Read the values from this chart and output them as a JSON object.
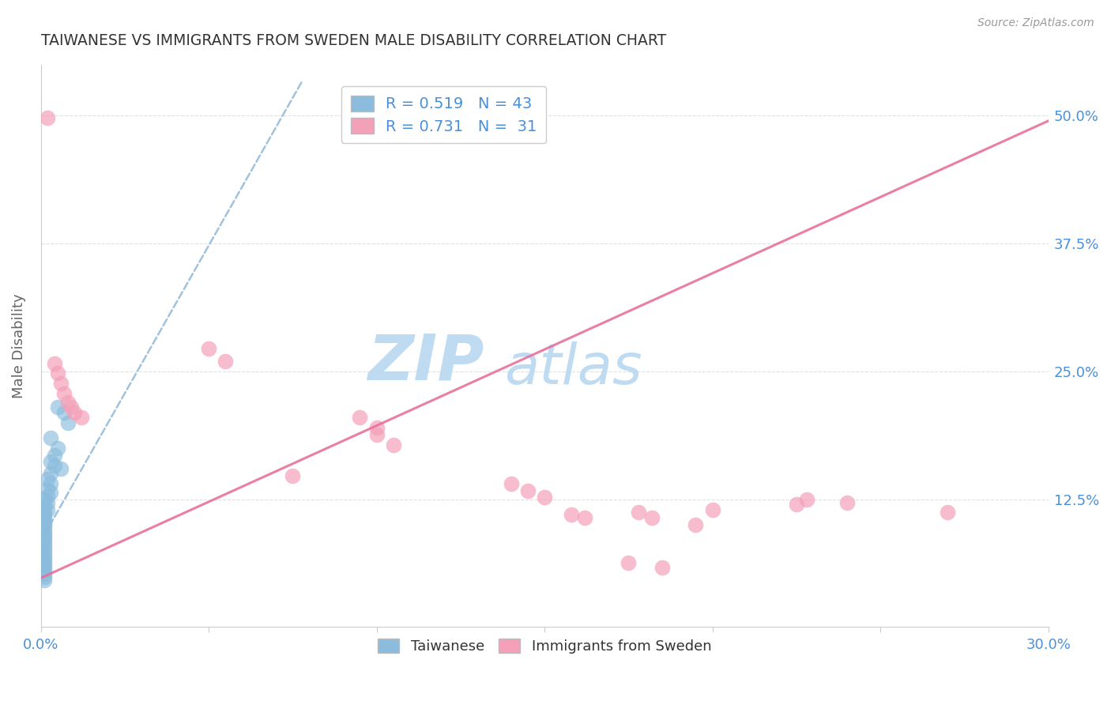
{
  "title": "TAIWANESE VS IMMIGRANTS FROM SWEDEN MALE DISABILITY CORRELATION CHART",
  "source": "Source: ZipAtlas.com",
  "ylabel_label": "Male Disability",
  "xlim": [
    0.0,
    0.3
  ],
  "ylim": [
    0.0,
    0.55
  ],
  "xtick_vals": [
    0.0,
    0.05,
    0.1,
    0.15,
    0.2,
    0.25,
    0.3
  ],
  "ytick_vals": [
    0.0,
    0.125,
    0.25,
    0.375,
    0.5
  ],
  "ytick_labels": [
    "",
    "12.5%",
    "25.0%",
    "37.5%",
    "50.0%"
  ],
  "taiwanese_color": "#8bbcdd",
  "sweden_color": "#f4a0b8",
  "taiwanese_scatter": [
    [
      0.005,
      0.215
    ],
    [
      0.007,
      0.21
    ],
    [
      0.008,
      0.2
    ],
    [
      0.003,
      0.185
    ],
    [
      0.005,
      0.175
    ],
    [
      0.004,
      0.168
    ],
    [
      0.003,
      0.162
    ],
    [
      0.004,
      0.158
    ],
    [
      0.006,
      0.155
    ],
    [
      0.003,
      0.15
    ],
    [
      0.002,
      0.145
    ],
    [
      0.003,
      0.14
    ],
    [
      0.002,
      0.135
    ],
    [
      0.003,
      0.132
    ],
    [
      0.002,
      0.128
    ],
    [
      0.001,
      0.125
    ],
    [
      0.002,
      0.122
    ],
    [
      0.001,
      0.118
    ],
    [
      0.002,
      0.115
    ],
    [
      0.001,
      0.112
    ],
    [
      0.001,
      0.11
    ],
    [
      0.001,
      0.107
    ],
    [
      0.001,
      0.104
    ],
    [
      0.001,
      0.102
    ],
    [
      0.001,
      0.1
    ],
    [
      0.001,
      0.097
    ],
    [
      0.001,
      0.094
    ],
    [
      0.001,
      0.091
    ],
    [
      0.001,
      0.088
    ],
    [
      0.001,
      0.085
    ],
    [
      0.001,
      0.082
    ],
    [
      0.001,
      0.079
    ],
    [
      0.001,
      0.076
    ],
    [
      0.001,
      0.073
    ],
    [
      0.001,
      0.07
    ],
    [
      0.001,
      0.067
    ],
    [
      0.001,
      0.064
    ],
    [
      0.001,
      0.061
    ],
    [
      0.001,
      0.058
    ],
    [
      0.001,
      0.055
    ],
    [
      0.001,
      0.052
    ],
    [
      0.001,
      0.049
    ],
    [
      0.001,
      0.046
    ]
  ],
  "sweden_scatter": [
    [
      0.002,
      0.498
    ],
    [
      0.004,
      0.258
    ],
    [
      0.005,
      0.248
    ],
    [
      0.006,
      0.238
    ],
    [
      0.007,
      0.228
    ],
    [
      0.008,
      0.22
    ],
    [
      0.009,
      0.215
    ],
    [
      0.01,
      0.21
    ],
    [
      0.012,
      0.205
    ],
    [
      0.05,
      0.272
    ],
    [
      0.055,
      0.26
    ],
    [
      0.075,
      0.148
    ],
    [
      0.095,
      0.205
    ],
    [
      0.1,
      0.195
    ],
    [
      0.1,
      0.188
    ],
    [
      0.105,
      0.178
    ],
    [
      0.14,
      0.14
    ],
    [
      0.145,
      0.133
    ],
    [
      0.15,
      0.127
    ],
    [
      0.158,
      0.11
    ],
    [
      0.162,
      0.107
    ],
    [
      0.178,
      0.112
    ],
    [
      0.182,
      0.107
    ],
    [
      0.2,
      0.115
    ],
    [
      0.225,
      0.12
    ],
    [
      0.228,
      0.125
    ],
    [
      0.24,
      0.122
    ],
    [
      0.27,
      0.112
    ],
    [
      0.175,
      0.063
    ],
    [
      0.185,
      0.058
    ],
    [
      0.195,
      0.1
    ]
  ],
  "blue_line_x": [
    0.001,
    0.078
  ],
  "blue_line_y": [
    0.09,
    0.535
  ],
  "pink_line_x": [
    0.0,
    0.3
  ],
  "pink_line_y": [
    0.048,
    0.495
  ],
  "grid_color": "#dddddd",
  "background_color": "#ffffff",
  "title_color": "#333333",
  "axis_label_color": "#666666",
  "tick_color": "#4a90d9",
  "watermark_color": "#cce4f5",
  "figsize": [
    14.06,
    8.92
  ],
  "dpi": 100
}
